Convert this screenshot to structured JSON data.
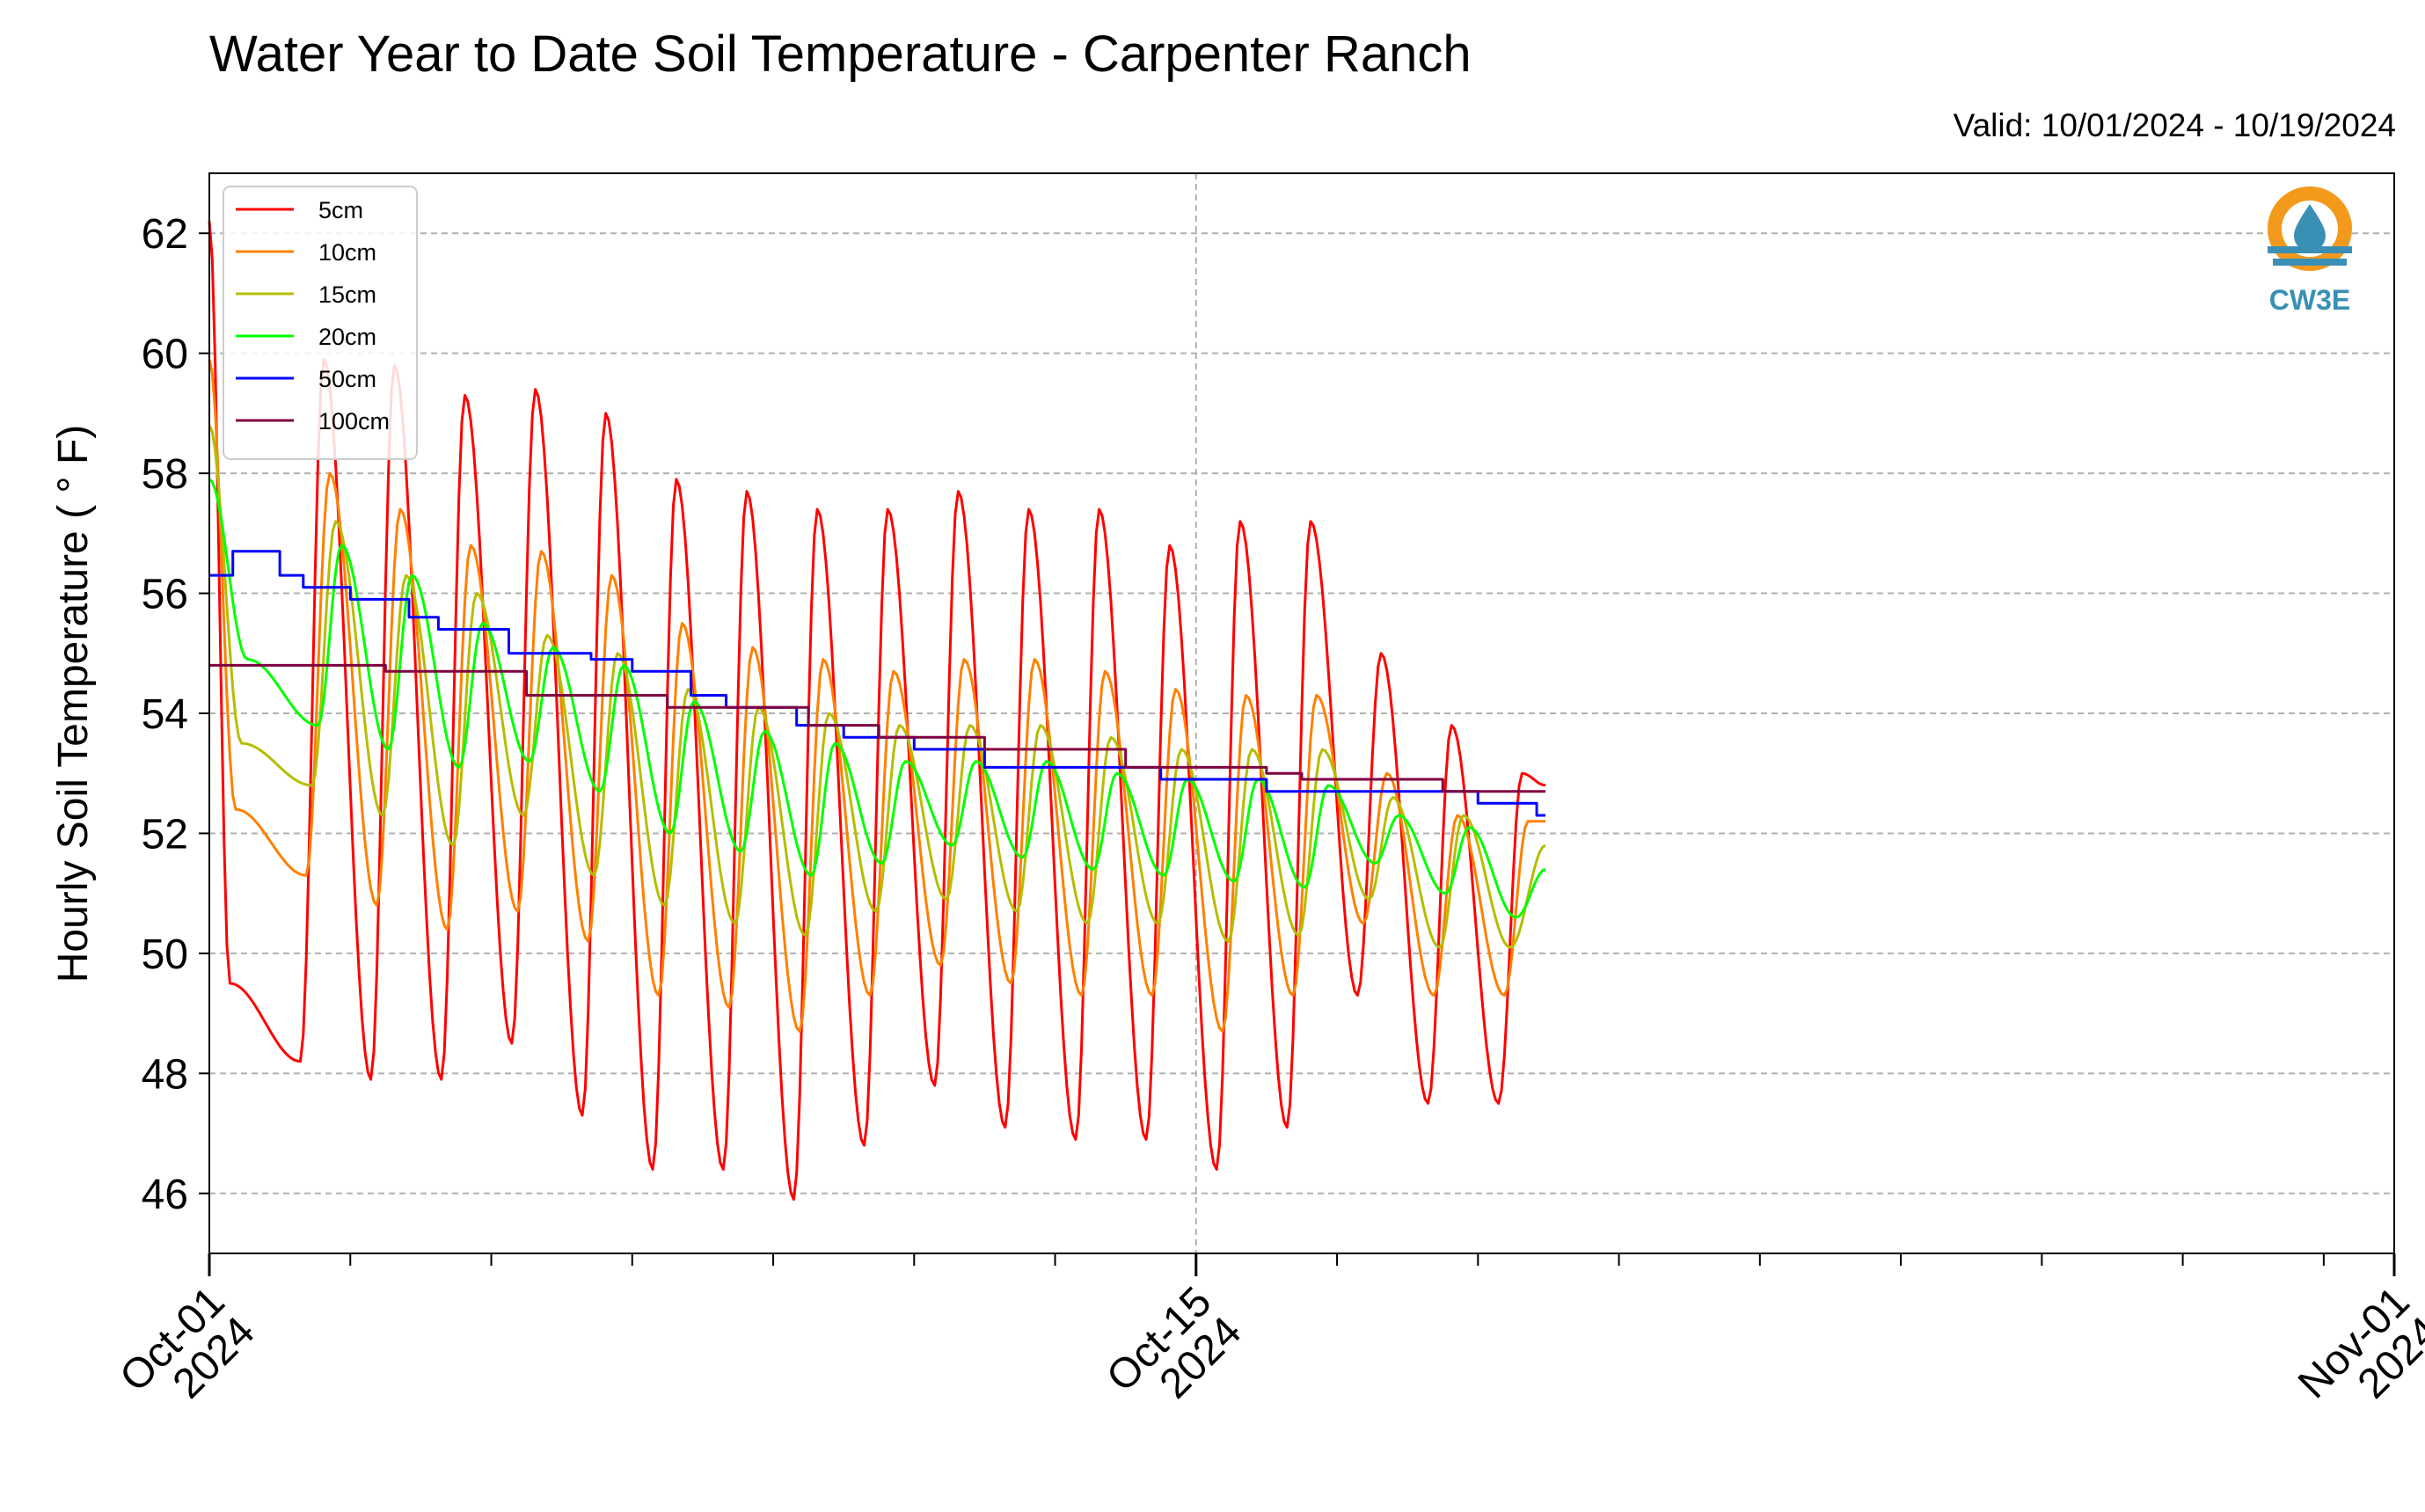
{
  "chart_data": {
    "type": "line",
    "title": "Water Year to Date Soil Temperature - Carpenter Ranch",
    "subtitle": "Valid: 10/01/2024 - 10/19/2024",
    "xlabel": "",
    "ylabel": "Hourly Soil Temperature ( ° F)",
    "xlim": [
      "2024-10-01",
      "2024-11-01"
    ],
    "ylim": [
      45,
      63
    ],
    "yticks": [
      46,
      48,
      50,
      52,
      54,
      56,
      58,
      60,
      62
    ],
    "x_tick_labels": [
      {
        "date": "2024-10-01",
        "line1": "Oct-01",
        "line2": "2024"
      },
      {
        "date": "2024-10-15",
        "line1": "Oct-15",
        "line2": "2024"
      },
      {
        "date": "2024-11-01",
        "line1": "Nov-01",
        "line2": "2024"
      }
    ],
    "grid": true,
    "legend_position": "top-left",
    "logo_text": "CW3E",
    "series": [
      {
        "name": "5cm",
        "color": "#ff0000",
        "kind": "diurnal",
        "peaks": [
          [
            "2024-10-01T00:00",
            62.2
          ],
          [
            "2024-10-02T15:00",
            59.9
          ],
          [
            "2024-10-03T15:00",
            59.8
          ],
          [
            "2024-10-04T15:00",
            59.3
          ],
          [
            "2024-10-05T15:00",
            59.4
          ],
          [
            "2024-10-06T15:00",
            59.0
          ],
          [
            "2024-10-07T15:00",
            57.9
          ],
          [
            "2024-10-08T15:00",
            57.7
          ],
          [
            "2024-10-09T15:00",
            57.4
          ],
          [
            "2024-10-10T15:00",
            57.4
          ],
          [
            "2024-10-11T15:00",
            57.7
          ],
          [
            "2024-10-12T15:00",
            57.4
          ],
          [
            "2024-10-13T15:00",
            57.4
          ],
          [
            "2024-10-14T15:00",
            56.8
          ],
          [
            "2024-10-15T15:00",
            57.2
          ],
          [
            "2024-10-16T15:00",
            57.2
          ],
          [
            "2024-10-17T15:00",
            55.0
          ],
          [
            "2024-10-18T15:00",
            53.8
          ],
          [
            "2024-10-19T15:00",
            53.0
          ]
        ],
        "troughs": [
          [
            "2024-10-01T07:00",
            49.5
          ],
          [
            "2024-10-02T07:00",
            48.2
          ],
          [
            "2024-10-03T07:00",
            47.9
          ],
          [
            "2024-10-04T07:00",
            47.9
          ],
          [
            "2024-10-05T07:00",
            48.5
          ],
          [
            "2024-10-06T07:00",
            47.3
          ],
          [
            "2024-10-07T07:00",
            46.4
          ],
          [
            "2024-10-08T07:00",
            46.4
          ],
          [
            "2024-10-09T07:00",
            45.9
          ],
          [
            "2024-10-10T07:00",
            46.8
          ],
          [
            "2024-10-11T07:00",
            47.8
          ],
          [
            "2024-10-12T07:00",
            47.1
          ],
          [
            "2024-10-13T07:00",
            46.9
          ],
          [
            "2024-10-14T07:00",
            46.9
          ],
          [
            "2024-10-15T07:00",
            46.4
          ],
          [
            "2024-10-16T07:00",
            47.1
          ],
          [
            "2024-10-17T07:00",
            49.3
          ],
          [
            "2024-10-18T07:00",
            47.5
          ],
          [
            "2024-10-19T07:00",
            47.5
          ]
        ],
        "end": [
          "2024-10-19T23:00",
          52.8
        ]
      },
      {
        "name": "10cm",
        "color": "#ff8000",
        "kind": "diurnal",
        "peaks": [
          [
            "2024-10-01T00:00",
            59.9
          ],
          [
            "2024-10-02T17:00",
            58.0
          ],
          [
            "2024-10-03T17:00",
            57.4
          ],
          [
            "2024-10-04T17:00",
            56.8
          ],
          [
            "2024-10-05T17:00",
            56.7
          ],
          [
            "2024-10-06T17:00",
            56.3
          ],
          [
            "2024-10-07T17:00",
            55.5
          ],
          [
            "2024-10-08T17:00",
            55.1
          ],
          [
            "2024-10-09T17:00",
            54.9
          ],
          [
            "2024-10-10T17:00",
            54.7
          ],
          [
            "2024-10-11T17:00",
            54.9
          ],
          [
            "2024-10-12T17:00",
            54.9
          ],
          [
            "2024-10-13T17:00",
            54.7
          ],
          [
            "2024-10-14T17:00",
            54.4
          ],
          [
            "2024-10-15T17:00",
            54.3
          ],
          [
            "2024-10-16T17:00",
            54.3
          ],
          [
            "2024-10-17T17:00",
            53.0
          ],
          [
            "2024-10-18T17:00",
            52.3
          ],
          [
            "2024-10-19T17:00",
            52.2
          ]
        ],
        "troughs": [
          [
            "2024-10-01T09:00",
            52.4
          ],
          [
            "2024-10-02T09:00",
            51.3
          ],
          [
            "2024-10-03T09:00",
            50.8
          ],
          [
            "2024-10-04T09:00",
            50.4
          ],
          [
            "2024-10-05T09:00",
            50.7
          ],
          [
            "2024-10-06T09:00",
            50.2
          ],
          [
            "2024-10-07T09:00",
            49.3
          ],
          [
            "2024-10-08T09:00",
            49.1
          ],
          [
            "2024-10-09T09:00",
            48.7
          ],
          [
            "2024-10-10T09:00",
            49.3
          ],
          [
            "2024-10-11T09:00",
            49.8
          ],
          [
            "2024-10-12T09:00",
            49.5
          ],
          [
            "2024-10-13T09:00",
            49.3
          ],
          [
            "2024-10-14T09:00",
            49.3
          ],
          [
            "2024-10-15T09:00",
            48.7
          ],
          [
            "2024-10-16T09:00",
            49.3
          ],
          [
            "2024-10-17T09:00",
            50.5
          ],
          [
            "2024-10-18T09:00",
            49.3
          ],
          [
            "2024-10-19T09:00",
            49.3
          ]
        ],
        "end": [
          "2024-10-19T23:00",
          52.2
        ]
      },
      {
        "name": "15cm",
        "color": "#b5bd00",
        "kind": "diurnal",
        "peaks": [
          [
            "2024-10-01T00:00",
            58.8
          ],
          [
            "2024-10-02T19:00",
            57.2
          ],
          [
            "2024-10-03T19:00",
            56.3
          ],
          [
            "2024-10-04T19:00",
            56.0
          ],
          [
            "2024-10-05T19:00",
            55.3
          ],
          [
            "2024-10-06T19:00",
            55.0
          ],
          [
            "2024-10-07T19:00",
            54.4
          ],
          [
            "2024-10-08T19:00",
            54.1
          ],
          [
            "2024-10-09T19:00",
            54.0
          ],
          [
            "2024-10-10T19:00",
            53.8
          ],
          [
            "2024-10-11T19:00",
            53.8
          ],
          [
            "2024-10-12T19:00",
            53.8
          ],
          [
            "2024-10-13T19:00",
            53.6
          ],
          [
            "2024-10-14T19:00",
            53.4
          ],
          [
            "2024-10-15T19:00",
            53.4
          ],
          [
            "2024-10-16T19:00",
            53.4
          ],
          [
            "2024-10-17T19:00",
            52.6
          ],
          [
            "2024-10-18T19:00",
            52.3
          ]
        ],
        "troughs": [
          [
            "2024-10-01T11:00",
            53.5
          ],
          [
            "2024-10-02T11:00",
            52.8
          ],
          [
            "2024-10-03T11:00",
            52.3
          ],
          [
            "2024-10-04T11:00",
            51.8
          ],
          [
            "2024-10-05T11:00",
            52.3
          ],
          [
            "2024-10-06T11:00",
            51.3
          ],
          [
            "2024-10-07T11:00",
            50.8
          ],
          [
            "2024-10-08T11:00",
            50.5
          ],
          [
            "2024-10-09T11:00",
            50.3
          ],
          [
            "2024-10-10T11:00",
            50.7
          ],
          [
            "2024-10-11T11:00",
            50.9
          ],
          [
            "2024-10-12T11:00",
            50.7
          ],
          [
            "2024-10-13T11:00",
            50.5
          ],
          [
            "2024-10-14T11:00",
            50.5
          ],
          [
            "2024-10-15T11:00",
            50.2
          ],
          [
            "2024-10-16T11:00",
            50.3
          ],
          [
            "2024-10-17T11:00",
            50.9
          ],
          [
            "2024-10-18T11:00",
            50.1
          ],
          [
            "2024-10-19T11:00",
            50.1
          ]
        ],
        "end": [
          "2024-10-19T23:00",
          51.8
        ]
      },
      {
        "name": "20cm",
        "color": "#00ff00",
        "kind": "diurnal",
        "peaks": [
          [
            "2024-10-01T00:00",
            57.9
          ],
          [
            "2024-10-02T21:00",
            56.8
          ],
          [
            "2024-10-03T21:00",
            56.3
          ],
          [
            "2024-10-04T21:00",
            55.5
          ],
          [
            "2024-10-05T21:00",
            55.1
          ],
          [
            "2024-10-06T21:00",
            54.8
          ],
          [
            "2024-10-07T21:00",
            54.2
          ],
          [
            "2024-10-08T21:00",
            53.7
          ],
          [
            "2024-10-09T21:00",
            53.5
          ],
          [
            "2024-10-10T21:00",
            53.2
          ],
          [
            "2024-10-11T21:00",
            53.2
          ],
          [
            "2024-10-12T21:00",
            53.2
          ],
          [
            "2024-10-13T21:00",
            53.0
          ],
          [
            "2024-10-14T21:00",
            52.9
          ],
          [
            "2024-10-15T21:00",
            52.9
          ],
          [
            "2024-10-16T21:00",
            52.8
          ],
          [
            "2024-10-17T21:00",
            52.3
          ],
          [
            "2024-10-18T21:00",
            52.1
          ]
        ],
        "troughs": [
          [
            "2024-10-01T13:00",
            54.9
          ],
          [
            "2024-10-02T13:00",
            53.8
          ],
          [
            "2024-10-03T13:00",
            53.4
          ],
          [
            "2024-10-04T13:00",
            53.1
          ],
          [
            "2024-10-05T13:00",
            53.2
          ],
          [
            "2024-10-06T13:00",
            52.7
          ],
          [
            "2024-10-07T13:00",
            52.0
          ],
          [
            "2024-10-08T13:00",
            51.7
          ],
          [
            "2024-10-09T13:00",
            51.3
          ],
          [
            "2024-10-10T13:00",
            51.5
          ],
          [
            "2024-10-11T13:00",
            51.8
          ],
          [
            "2024-10-12T13:00",
            51.6
          ],
          [
            "2024-10-13T13:00",
            51.4
          ],
          [
            "2024-10-14T13:00",
            51.3
          ],
          [
            "2024-10-15T13:00",
            51.2
          ],
          [
            "2024-10-16T13:00",
            51.1
          ],
          [
            "2024-10-17T13:00",
            51.5
          ],
          [
            "2024-10-18T13:00",
            51.0
          ],
          [
            "2024-10-19T13:00",
            50.6
          ]
        ],
        "end": [
          "2024-10-19T23:00",
          51.4
        ]
      },
      {
        "name": "50cm",
        "color": "#0000ff",
        "kind": "step",
        "points": [
          [
            "2024-10-01T00:00",
            56.3
          ],
          [
            "2024-10-01T08:00",
            56.7
          ],
          [
            "2024-10-02T00:00",
            56.3
          ],
          [
            "2024-10-02T08:00",
            56.1
          ],
          [
            "2024-10-03T00:00",
            55.9
          ],
          [
            "2024-10-03T20:00",
            55.6
          ],
          [
            "2024-10-04T06:00",
            55.4
          ],
          [
            "2024-10-05T06:00",
            55.0
          ],
          [
            "2024-10-06T10:00",
            54.9
          ],
          [
            "2024-10-07T00:00",
            54.7
          ],
          [
            "2024-10-07T20:00",
            54.3
          ],
          [
            "2024-10-08T08:00",
            54.1
          ],
          [
            "2024-10-09T08:00",
            53.8
          ],
          [
            "2024-10-10T00:00",
            53.6
          ],
          [
            "2024-10-11T00:00",
            53.4
          ],
          [
            "2024-10-12T00:00",
            53.1
          ],
          [
            "2024-10-13T00:00",
            53.1
          ],
          [
            "2024-10-14T12:00",
            52.9
          ],
          [
            "2024-10-15T00:00",
            52.9
          ],
          [
            "2024-10-16T00:00",
            52.7
          ],
          [
            "2024-10-17T00:00",
            52.7
          ],
          [
            "2024-10-18T00:00",
            52.7
          ],
          [
            "2024-10-19T00:00",
            52.5
          ],
          [
            "2024-10-19T20:00",
            52.3
          ],
          [
            "2024-10-19T23:00",
            52.3
          ]
        ]
      },
      {
        "name": "100cm",
        "color": "#7f0040",
        "kind": "step",
        "points": [
          [
            "2024-10-01T00:00",
            54.8
          ],
          [
            "2024-10-03T00:00",
            54.8
          ],
          [
            "2024-10-03T12:00",
            54.7
          ],
          [
            "2024-10-05T00:00",
            54.7
          ],
          [
            "2024-10-05T12:00",
            54.3
          ],
          [
            "2024-10-07T00:00",
            54.3
          ],
          [
            "2024-10-07T12:00",
            54.1
          ],
          [
            "2024-10-09T00:00",
            54.1
          ],
          [
            "2024-10-09T12:00",
            53.8
          ],
          [
            "2024-10-10T12:00",
            53.6
          ],
          [
            "2024-10-12T00:00",
            53.4
          ],
          [
            "2024-10-13T12:00",
            53.4
          ],
          [
            "2024-10-14T00:00",
            53.1
          ],
          [
            "2024-10-16T00:00",
            53.0
          ],
          [
            "2024-10-16T12:00",
            52.9
          ],
          [
            "2024-10-18T00:00",
            52.9
          ],
          [
            "2024-10-18T12:00",
            52.7
          ],
          [
            "2024-10-19T23:00",
            52.7
          ]
        ]
      }
    ]
  }
}
